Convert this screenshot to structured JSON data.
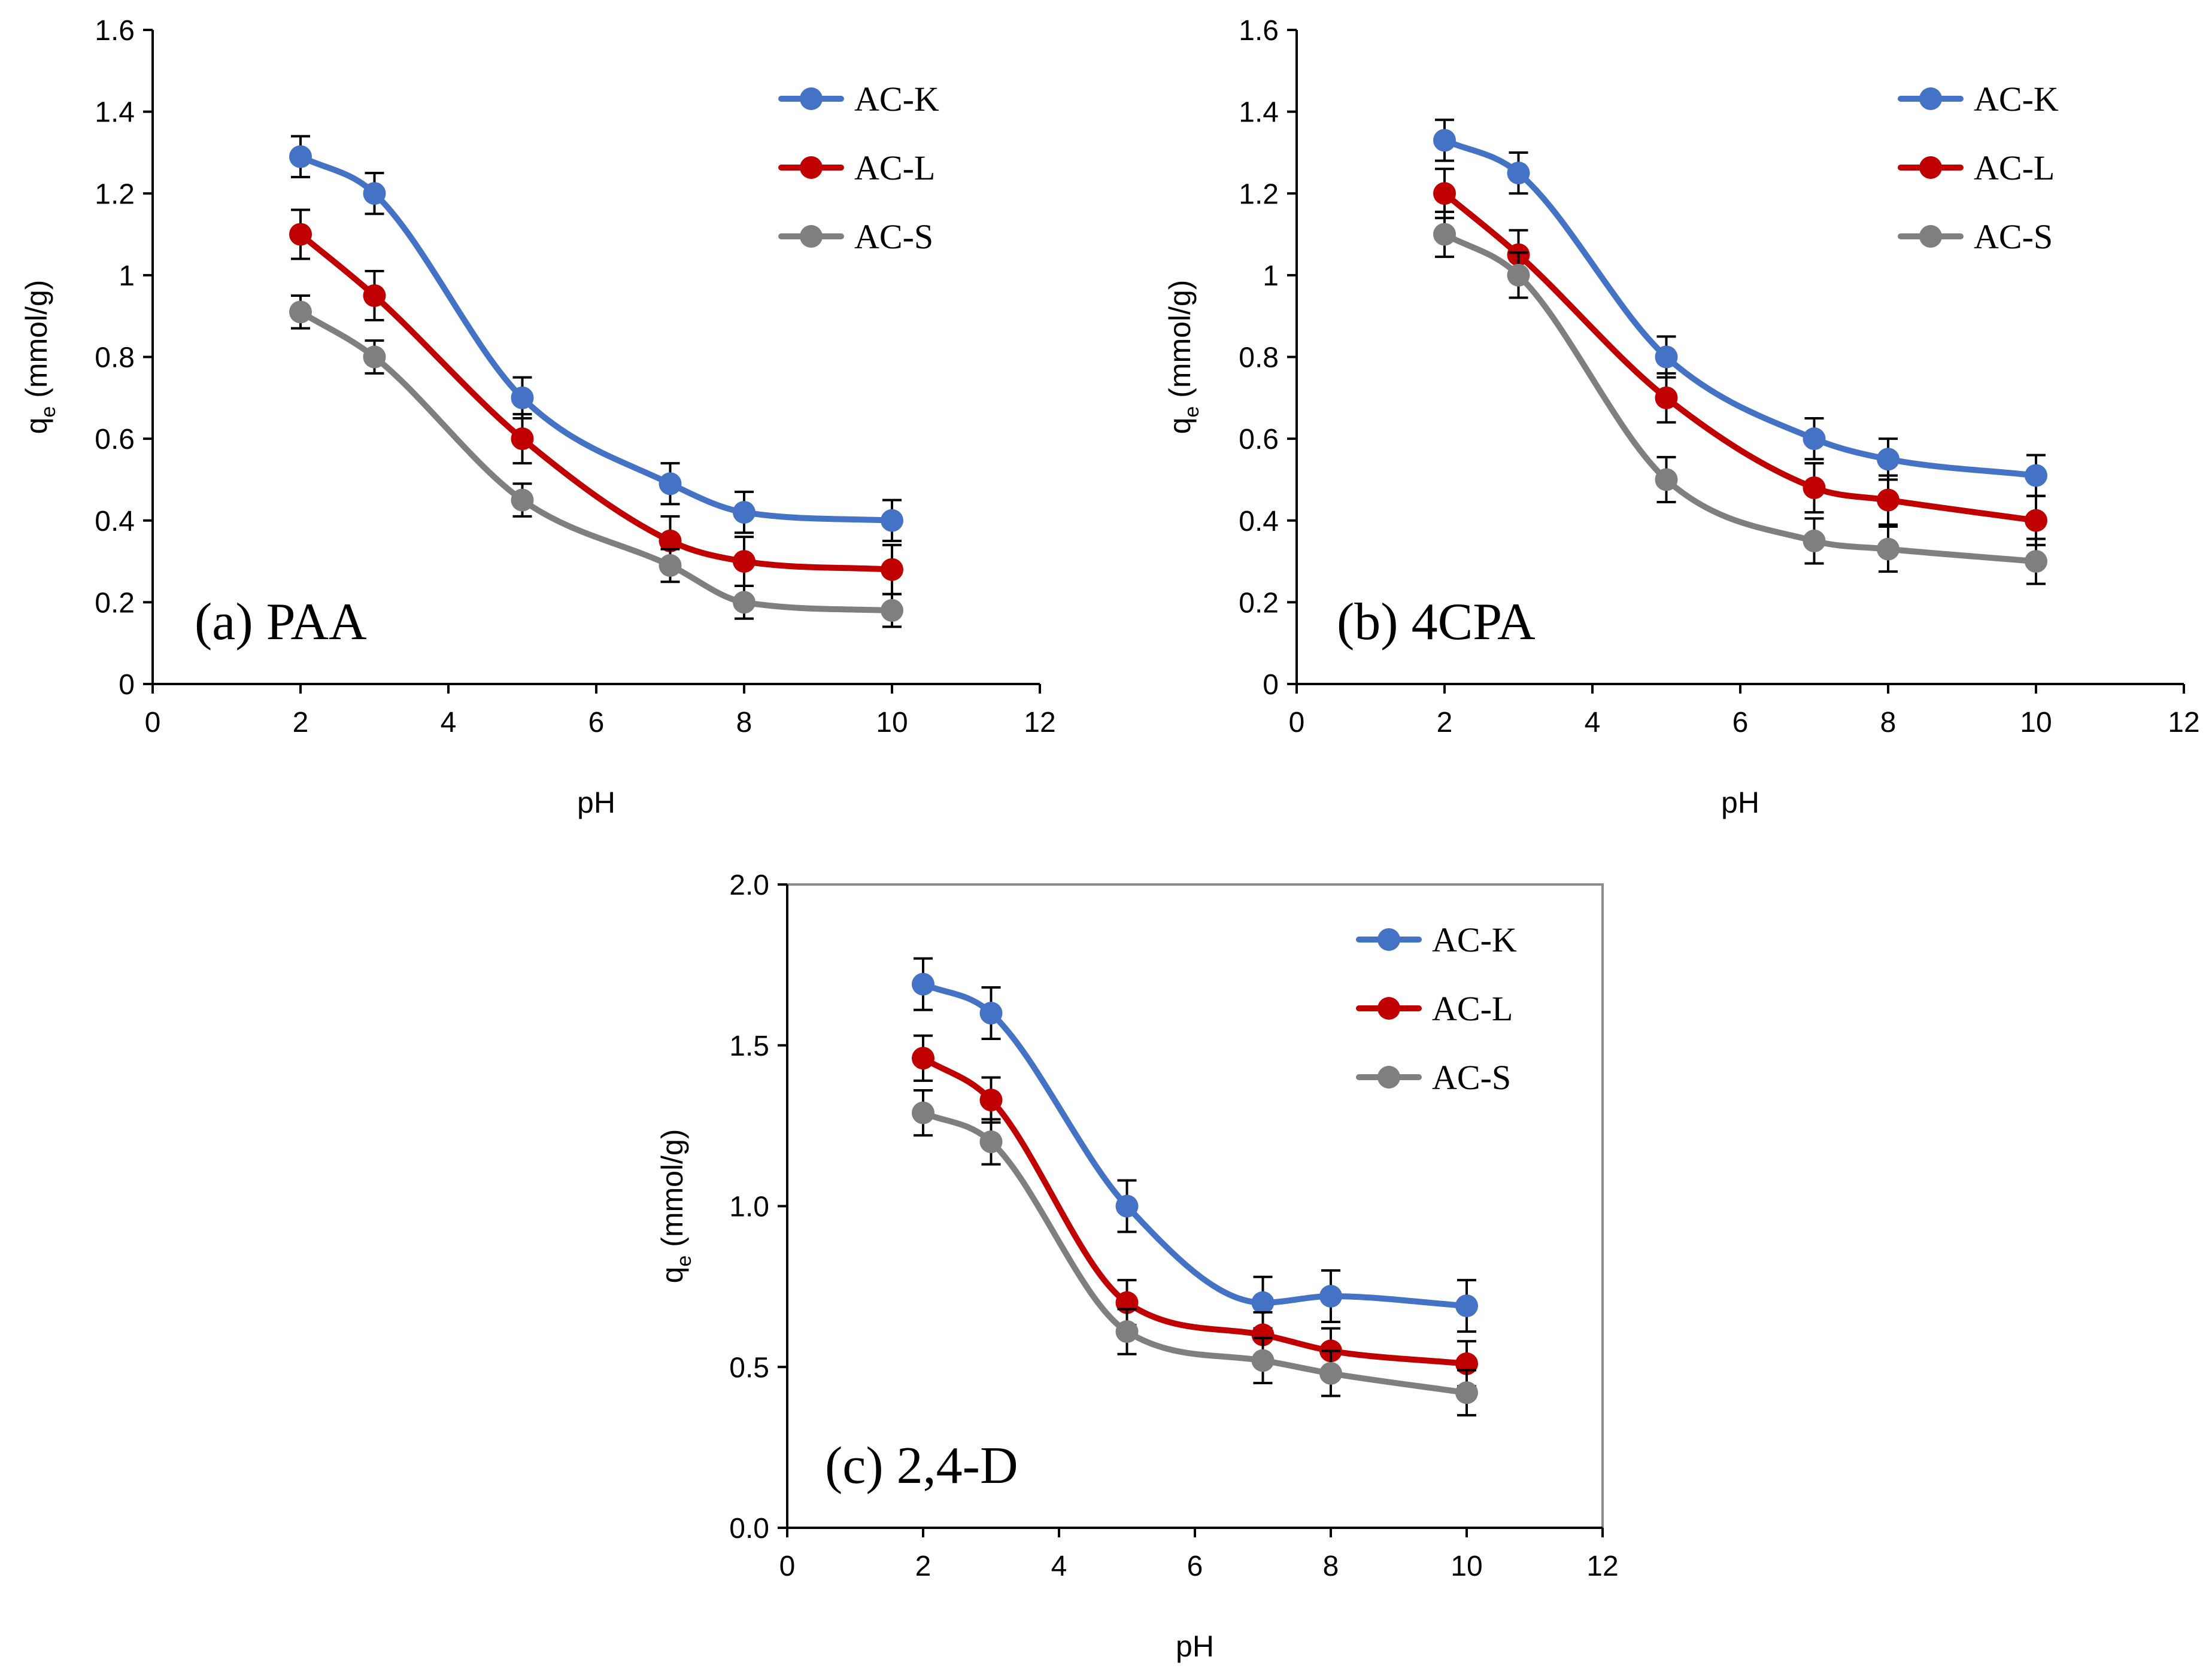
{
  "chart_data": [
    {
      "type": "line",
      "panel_label": "(a) PAA",
      "xlabel": "pH",
      "ylabel_main": "q",
      "ylabel_sub": "e",
      "ylabel_unit": " (mmol/g)",
      "xlim": [
        0,
        12
      ],
      "ylim": [
        0,
        1.6
      ],
      "x_ticks": [
        "0",
        "2",
        "4",
        "6",
        "8",
        "10",
        "12"
      ],
      "y_ticks": [
        "0",
        "0.2",
        "0.4",
        "0.6",
        "0.8",
        "1",
        "1.2",
        "1.4",
        "1.6"
      ],
      "x": [
        2,
        3,
        5,
        7,
        8,
        10
      ],
      "series": [
        {
          "name": "AC-K",
          "color": "#4472C4",
          "values": [
            1.29,
            1.2,
            0.7,
            0.49,
            0.42,
            0.4
          ],
          "errors": [
            0.05,
            0.05,
            0.05,
            0.05,
            0.05,
            0.05
          ]
        },
        {
          "name": "AC-L",
          "color": "#C00000",
          "values": [
            1.1,
            0.95,
            0.6,
            0.35,
            0.3,
            0.28
          ],
          "errors": [
            0.06,
            0.06,
            0.06,
            0.06,
            0.06,
            0.06
          ]
        },
        {
          "name": "AC-S",
          "color": "#7F7F7F",
          "values": [
            0.91,
            0.8,
            0.45,
            0.29,
            0.2,
            0.18
          ],
          "errors": [
            0.04,
            0.04,
            0.04,
            0.04,
            0.04,
            0.04
          ]
        }
      ],
      "grid": false,
      "legend": "top-right"
    },
    {
      "type": "line",
      "panel_label": "(b) 4CPA",
      "xlabel": "pH",
      "ylabel_main": "q",
      "ylabel_sub": "e",
      "ylabel_unit": " (mmol/g)",
      "xlim": [
        0,
        12
      ],
      "ylim": [
        0,
        1.6
      ],
      "x_ticks": [
        "0",
        "2",
        "4",
        "6",
        "8",
        "10",
        "12"
      ],
      "y_ticks": [
        "0",
        "0.2",
        "0.4",
        "0.6",
        "0.8",
        "1",
        "1.2",
        "1.4",
        "1.6"
      ],
      "x": [
        2,
        3,
        5,
        7,
        8,
        10
      ],
      "series": [
        {
          "name": "AC-K",
          "color": "#4472C4",
          "values": [
            1.33,
            1.25,
            0.8,
            0.6,
            0.55,
            0.51
          ],
          "errors": [
            0.05,
            0.05,
            0.05,
            0.05,
            0.05,
            0.05
          ]
        },
        {
          "name": "AC-L",
          "color": "#C00000",
          "values": [
            1.2,
            1.05,
            0.7,
            0.48,
            0.45,
            0.4
          ],
          "errors": [
            0.06,
            0.06,
            0.06,
            0.06,
            0.06,
            0.06
          ]
        },
        {
          "name": "AC-S",
          "color": "#7F7F7F",
          "values": [
            1.1,
            1.0,
            0.5,
            0.35,
            0.33,
            0.3
          ],
          "errors": [
            0.055,
            0.055,
            0.055,
            0.055,
            0.055,
            0.055
          ]
        }
      ],
      "grid": false,
      "legend": "top-right"
    },
    {
      "type": "line",
      "panel_label": "(c) 2,4-D",
      "xlabel": "pH",
      "ylabel_main": "q",
      "ylabel_sub": "e",
      "ylabel_unit": " (mmol/g)",
      "xlim": [
        0,
        12
      ],
      "ylim": [
        0,
        2.0
      ],
      "x_ticks": [
        "0",
        "2",
        "4",
        "6",
        "8",
        "10",
        "12"
      ],
      "y_ticks": [
        "0.0",
        "0.5",
        "1.0",
        "1.5",
        "2.0"
      ],
      "x": [
        2,
        3,
        5,
        7,
        8,
        10
      ],
      "series": [
        {
          "name": "AC-K",
          "color": "#4472C4",
          "values": [
            1.69,
            1.6,
            1.0,
            0.7,
            0.72,
            0.69
          ],
          "errors": [
            0.08,
            0.08,
            0.08,
            0.08,
            0.08,
            0.08
          ]
        },
        {
          "name": "AC-L",
          "color": "#C00000",
          "values": [
            1.46,
            1.33,
            0.7,
            0.6,
            0.55,
            0.51
          ],
          "errors": [
            0.07,
            0.07,
            0.07,
            0.07,
            0.07,
            0.07
          ]
        },
        {
          "name": "AC-S",
          "color": "#7F7F7F",
          "values": [
            1.29,
            1.2,
            0.61,
            0.52,
            0.48,
            0.42
          ],
          "errors": [
            0.07,
            0.07,
            0.07,
            0.07,
            0.07,
            0.07
          ]
        }
      ],
      "grid": false,
      "legend": "top-right",
      "frame": true
    }
  ]
}
